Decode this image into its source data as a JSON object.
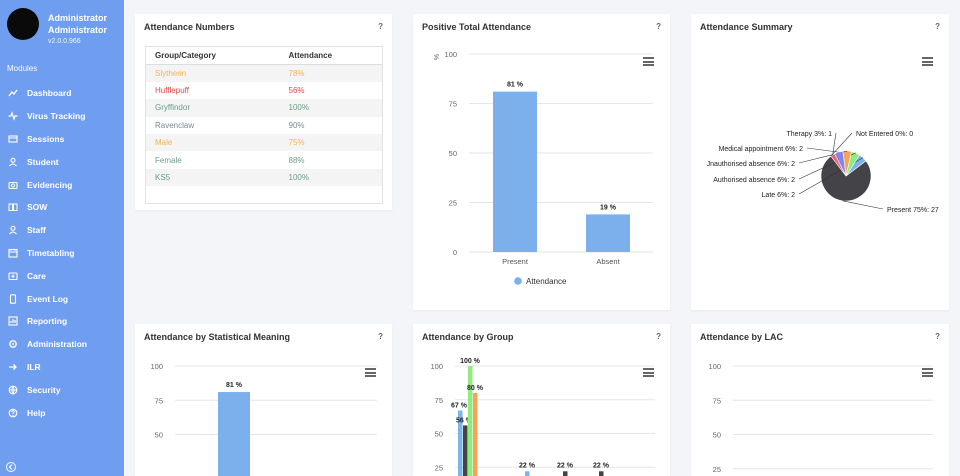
{
  "user": {
    "name_line1": "Administrator",
    "name_line2": "Administrator",
    "version": "v2.0.0.966"
  },
  "sidebar": {
    "modules_label": "Modules",
    "items": [
      {
        "label": "Dashboard",
        "icon": "dashboard-icon"
      },
      {
        "label": "Virus Tracking",
        "icon": "virus-icon"
      },
      {
        "label": "Sessions",
        "icon": "sessions-icon"
      },
      {
        "label": "Student",
        "icon": "student-icon"
      },
      {
        "label": "Evidencing",
        "icon": "camera-icon"
      },
      {
        "label": "SOW",
        "icon": "book-icon"
      },
      {
        "label": "Staff",
        "icon": "staff-icon"
      },
      {
        "label": "Timetabling",
        "icon": "calendar-icon"
      },
      {
        "label": "Care",
        "icon": "care-icon"
      },
      {
        "label": "Event Log",
        "icon": "phone-icon"
      },
      {
        "label": "Reporting",
        "icon": "report-icon"
      },
      {
        "label": "Administration",
        "icon": "gear-icon"
      },
      {
        "label": "ILR",
        "icon": "arrow-right-icon"
      },
      {
        "label": "Security",
        "icon": "globe-icon"
      },
      {
        "label": "Help",
        "icon": "help-icon"
      }
    ]
  },
  "cards": {
    "attendance_numbers": {
      "title": "Attendance Numbers",
      "help": "?",
      "headers": [
        "Group/Category",
        "Attendance"
      ],
      "rows": [
        {
          "group": "Slytherin",
          "value": "78%",
          "color": "#f0b552"
        },
        {
          "group": "Hufflepuff",
          "value": "56%",
          "color": "#e04747"
        },
        {
          "group": "Gryffindor",
          "value": "100%",
          "color": "#6a9e84"
        },
        {
          "group": "Ravenclaw",
          "value": "90%",
          "color": "#7b8794"
        },
        {
          "group": "Male",
          "value": "75%",
          "color": "#f0b552"
        },
        {
          "group": "Female",
          "value": "88%",
          "color": "#6a9e84"
        },
        {
          "group": "KS5",
          "value": "100%",
          "color": "#6a9e84"
        }
      ]
    },
    "positive_total": {
      "title": "Positive Total Attendance",
      "help": "?"
    },
    "summary": {
      "title": "Attendance Summary",
      "help": "?"
    },
    "statistical": {
      "title": "Attendance by Statistical Meaning",
      "help": "?"
    },
    "by_group": {
      "title": "Attendance by Group",
      "help": "?"
    },
    "by_lac": {
      "title": "Attendance by LAC",
      "help": "?"
    }
  },
  "chart_data": [
    {
      "type": "bar",
      "title": "Positive Total Attendance",
      "ylabel": "%",
      "ylim": [
        0,
        100
      ],
      "yticks": [
        "0",
        "25",
        "50",
        "75",
        "100"
      ],
      "categories": [
        "Present",
        "Absent"
      ],
      "series": [
        {
          "name": "Attendance",
          "values": [
            81,
            19
          ],
          "color": "#7cb0ec"
        }
      ],
      "data_labels": [
        "81 %",
        "19 %"
      ],
      "legend": "bottom"
    },
    {
      "type": "pie",
      "title": "Attendance Summary",
      "slices": [
        {
          "label": "Present 75%: 27",
          "value": 27,
          "color": "#434348"
        },
        {
          "label": "Late 6%: 2",
          "value": 2,
          "color": "#7cb5ec"
        },
        {
          "label": "Authorised absence 6%: 2",
          "value": 2,
          "color": "#90ed7d"
        },
        {
          "label": "Jnauthorised absence 6%: 2",
          "value": 2,
          "color": "#f7a35c"
        },
        {
          "label": "Medical appointment 6%: 2",
          "value": 2,
          "color": "#8085e9"
        },
        {
          "label": "Therapy 3%: 1",
          "value": 1,
          "color": "#f15c80"
        },
        {
          "label": "Not Entered 0%: 0",
          "value": 0,
          "color": "#e4d354"
        }
      ]
    },
    {
      "type": "bar",
      "title": "Attendance by Statistical Meaning",
      "yticks": [
        "50",
        "75",
        "100"
      ],
      "ylim": [
        0,
        100
      ],
      "series": [
        {
          "name": "Attendance",
          "values": [
            81
          ],
          "color": "#7cb0ec"
        }
      ],
      "data_labels": [
        "81 %"
      ]
    },
    {
      "type": "bar",
      "title": "Attendance by Group",
      "yticks": [
        "25",
        "50",
        "75",
        "100"
      ],
      "ylim": [
        0,
        100
      ],
      "series": [
        {
          "values": [
            67,
            22
          ],
          "color": "#7cb5ec"
        },
        {
          "values": [
            56,
            22
          ],
          "color": "#434348"
        },
        {
          "values": [
            100
          ],
          "color": "#90ed7d"
        },
        {
          "values": [
            80
          ],
          "color": "#f7a35c"
        }
      ],
      "data_labels": [
        "67 %",
        "56 %",
        "100 %",
        "80 %",
        "22 %",
        "22 %",
        "22 %"
      ]
    },
    {
      "type": "bar",
      "title": "Attendance by LAC",
      "yticks": [
        "25",
        "50",
        "75",
        "100"
      ],
      "ylim": [
        0,
        100
      ]
    }
  ]
}
